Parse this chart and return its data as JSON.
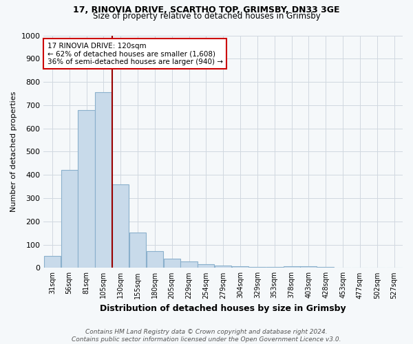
{
  "title1": "17, RINOVIA DRIVE, SCARTHO TOP, GRIMSBY, DN33 3GE",
  "title2": "Size of property relative to detached houses in Grimsby",
  "xlabel": "Distribution of detached houses by size in Grimsby",
  "ylabel": "Number of detached properties",
  "footnote": "Contains HM Land Registry data © Crown copyright and database right 2024.\nContains public sector information licensed under the Open Government Licence v3.0.",
  "categories": [
    "31sqm",
    "56sqm",
    "81sqm",
    "105sqm",
    "130sqm",
    "155sqm",
    "180sqm",
    "205sqm",
    "229sqm",
    "254sqm",
    "279sqm",
    "304sqm",
    "329sqm",
    "353sqm",
    "378sqm",
    "403sqm",
    "428sqm",
    "453sqm",
    "477sqm",
    "502sqm",
    "527sqm"
  ],
  "values": [
    50,
    420,
    680,
    755,
    360,
    152,
    72,
    38,
    27,
    15,
    10,
    8,
    5,
    5,
    8,
    8,
    5,
    0,
    0,
    0,
    0
  ],
  "bar_color": "#c8daea",
  "bar_edge_color": "#8ab0cc",
  "marker_line_color": "#990000",
  "marker_bin_index": 4,
  "annotation_line1": "17 RINOVIA DRIVE: 120sqm",
  "annotation_line2": "← 62% of detached houses are smaller (1,608)",
  "annotation_line3": "36% of semi-detached houses are larger (940) →",
  "annotation_box_color": "#ffffff",
  "annotation_box_edge": "#cc0000",
  "ylim": [
    0,
    1000
  ],
  "yticks": [
    0,
    100,
    200,
    300,
    400,
    500,
    600,
    700,
    800,
    900,
    1000
  ],
  "bg_color": "#f5f8fa",
  "grid_color": "#d0d8e0",
  "title1_fontsize": 9,
  "title2_fontsize": 8.5,
  "xlabel_fontsize": 9,
  "ylabel_fontsize": 8,
  "tick_fontsize": 8,
  "xtick_fontsize": 7,
  "footnote_fontsize": 6.5,
  "annotation_fontsize": 7.5
}
